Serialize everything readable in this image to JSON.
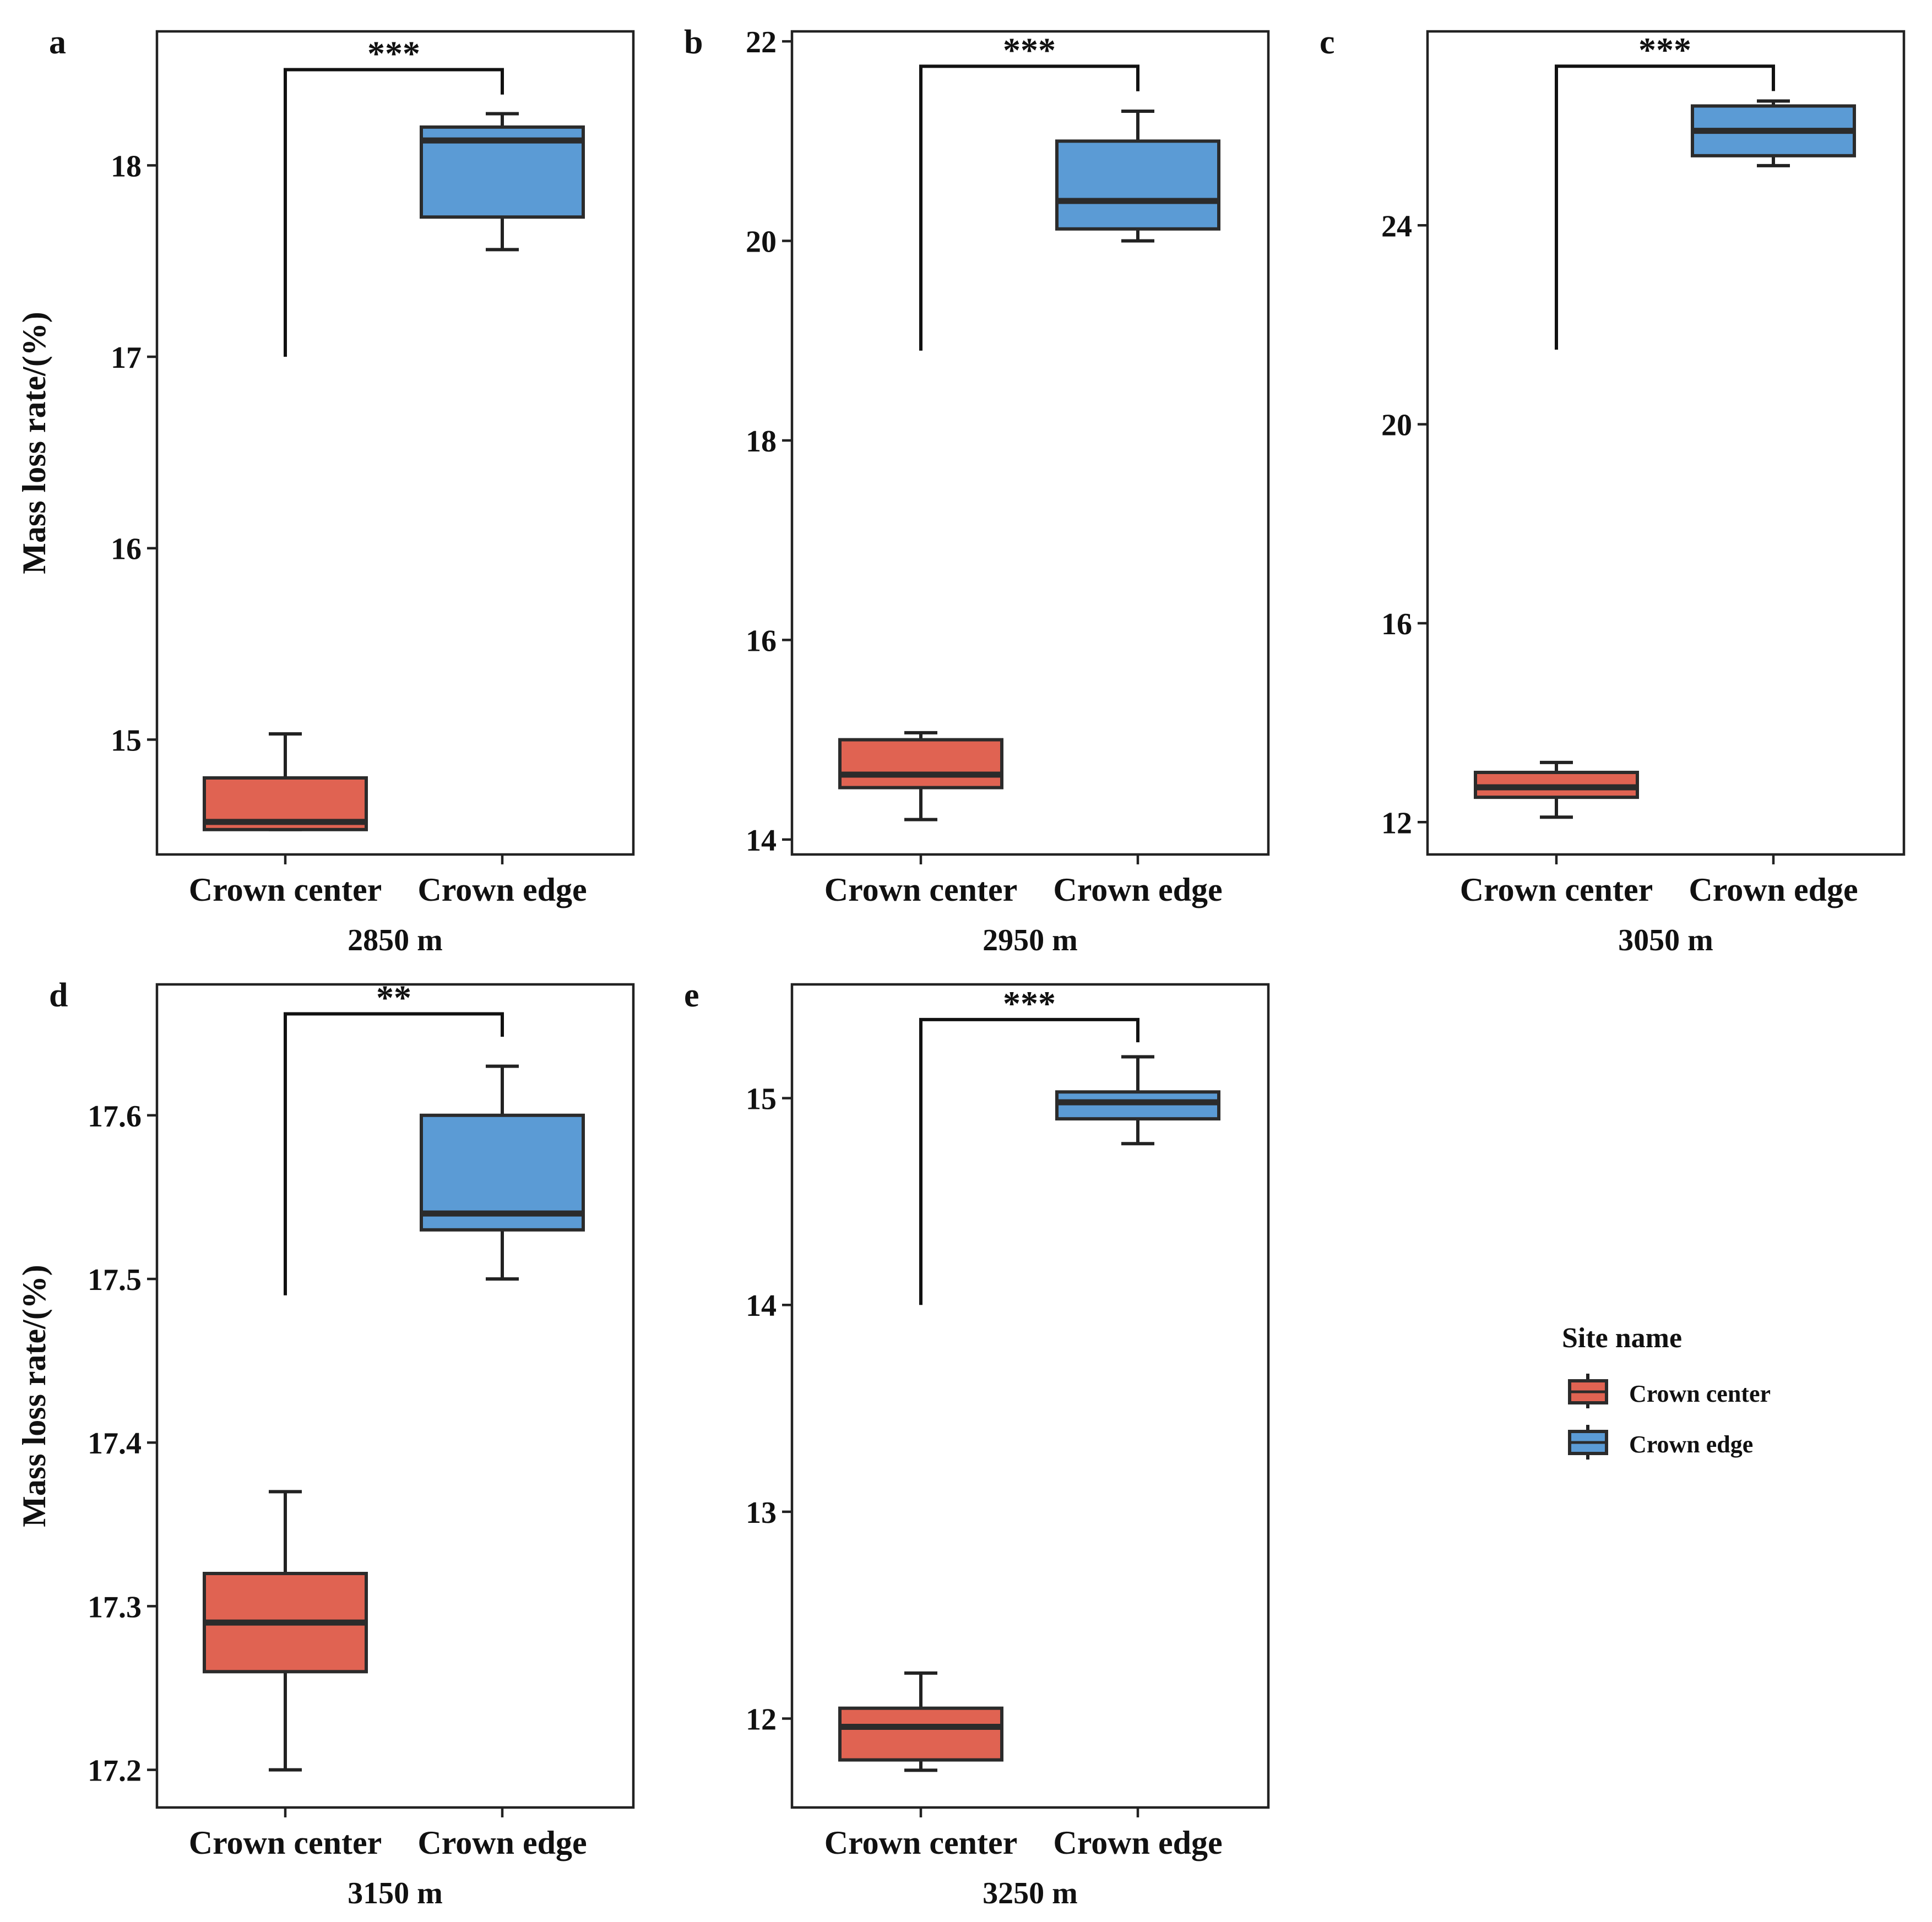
{
  "colors": {
    "crown_center": "#e06352",
    "crown_edge": "#5b9bd5",
    "ink": "#222222"
  },
  "legend": {
    "title": "Site name",
    "items": [
      {
        "label": "Crown center",
        "color_key": "crown_center"
      },
      {
        "label": "Crown edge",
        "color_key": "crown_edge"
      }
    ]
  },
  "chart_data": [
    {
      "type": "box",
      "panel": "a",
      "xlabel": "2850 m",
      "ylabel": "Mass loss rate/(%)",
      "categories": [
        "Crown center",
        "Crown edge"
      ],
      "ylim": [
        14.4,
        18.7
      ],
      "yticks": [
        15,
        16,
        17,
        18
      ],
      "boxes": [
        {
          "category": "Crown center",
          "min": 14.53,
          "q1": 14.53,
          "median": 14.57,
          "q3": 14.8,
          "max": 15.03
        },
        {
          "category": "Crown edge",
          "min": 17.56,
          "q1": 17.73,
          "median": 18.13,
          "q3": 18.2,
          "max": 18.27
        }
      ],
      "significance": {
        "label": "***",
        "bracket_top": 18.5,
        "left_end": 17.0,
        "right_end": 18.37
      }
    },
    {
      "type": "box",
      "panel": "b",
      "xlabel": "2950 m",
      "ylabel": "",
      "categories": [
        "Crown center",
        "Crown edge"
      ],
      "ylim": [
        13.85,
        22.1
      ],
      "yticks": [
        14,
        16,
        18,
        20,
        22
      ],
      "boxes": [
        {
          "category": "Crown center",
          "min": 14.2,
          "q1": 14.52,
          "median": 14.65,
          "q3": 15.0,
          "max": 15.07
        },
        {
          "category": "Crown edge",
          "min": 20.0,
          "q1": 20.12,
          "median": 20.4,
          "q3": 21.0,
          "max": 21.3
        }
      ],
      "significance": {
        "label": "***",
        "bracket_top": 21.75,
        "left_end": 18.9,
        "right_end": 21.5
      }
    },
    {
      "type": "box",
      "panel": "c",
      "xlabel": "3050 m",
      "ylabel": "",
      "categories": [
        "Crown center",
        "Crown edge"
      ],
      "ylim": [
        11.35,
        27.9
      ],
      "yticks": [
        12,
        16,
        20,
        24
      ],
      "boxes": [
        {
          "category": "Crown center",
          "min": 12.1,
          "q1": 12.5,
          "median": 12.7,
          "q3": 13.0,
          "max": 13.2
        },
        {
          "category": "Crown edge",
          "min": 25.2,
          "q1": 25.4,
          "median": 25.9,
          "q3": 26.4,
          "max": 26.5
        }
      ],
      "significance": {
        "label": "***",
        "bracket_top": 27.2,
        "left_end": 21.5,
        "right_end": 26.7
      }
    },
    {
      "type": "box",
      "panel": "d",
      "xlabel": "3150 m",
      "ylabel": "Mass loss rate/(%)",
      "categories": [
        "Crown center",
        "Crown edge"
      ],
      "ylim": [
        17.177,
        17.68
      ],
      "yticks": [
        17.2,
        17.3,
        17.4,
        17.5,
        17.6
      ],
      "ytick_labels": [
        "17.2",
        "17.3",
        "17.4",
        "17.5",
        "17.6"
      ],
      "boxes": [
        {
          "category": "Crown center",
          "min": 17.2,
          "q1": 17.26,
          "median": 17.29,
          "q3": 17.32,
          "max": 17.37
        },
        {
          "category": "Crown edge",
          "min": 17.5,
          "q1": 17.53,
          "median": 17.54,
          "q3": 17.6,
          "max": 17.63
        }
      ],
      "significance": {
        "label": "**",
        "bracket_top": 17.662,
        "left_end": 17.49,
        "right_end": 17.648
      }
    },
    {
      "type": "box",
      "panel": "e",
      "xlabel": "3250 m",
      "ylabel": "",
      "categories": [
        "Crown center",
        "Crown edge"
      ],
      "ylim": [
        11.57,
        15.55
      ],
      "yticks": [
        12,
        13,
        14,
        15
      ],
      "boxes": [
        {
          "category": "Crown center",
          "min": 11.75,
          "q1": 11.8,
          "median": 11.96,
          "q3": 12.05,
          "max": 12.22
        },
        {
          "category": "Crown edge",
          "min": 14.78,
          "q1": 14.9,
          "median": 14.98,
          "q3": 15.03,
          "max": 15.2
        }
      ],
      "significance": {
        "label": "***",
        "bracket_top": 15.38,
        "left_end": 14.0,
        "right_end": 15.27
      }
    }
  ]
}
